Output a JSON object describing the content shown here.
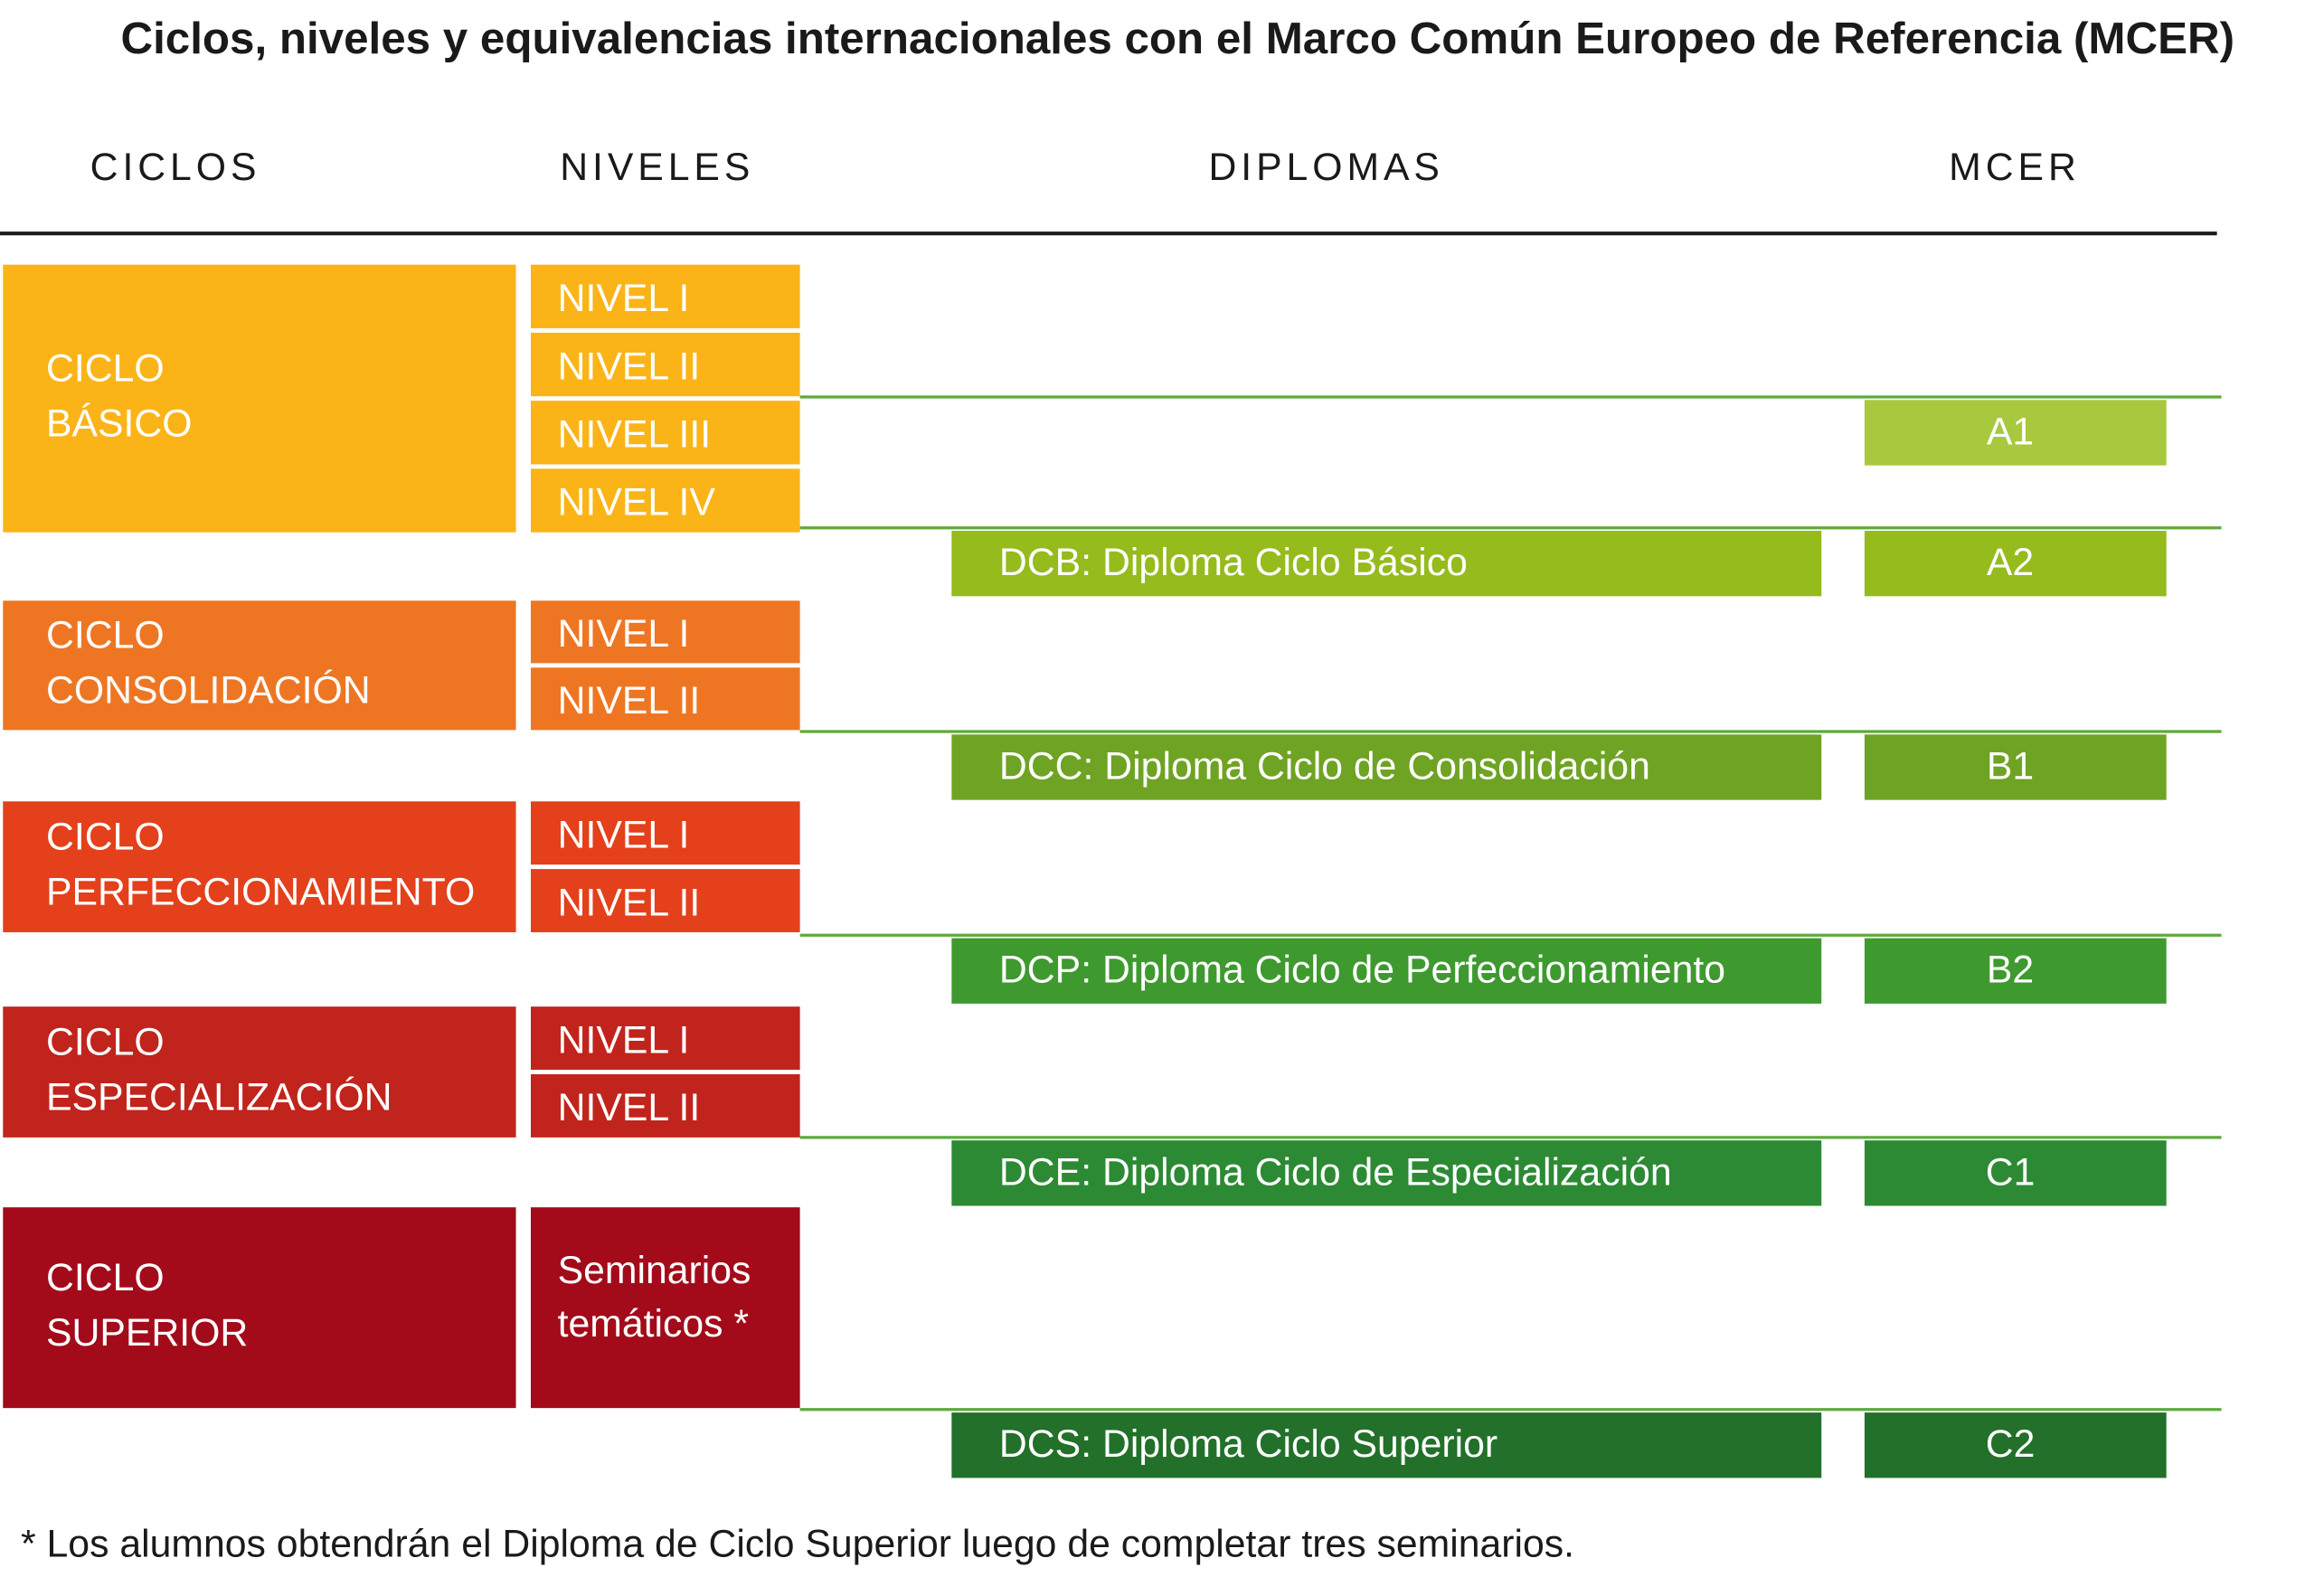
{
  "header": {
    "title": "Ciclos, niveles y equivalencias internacionales con el Marco Común Europeo de Referencia (MCER)"
  },
  "columns": [
    "CICLOS",
    "NIVELES",
    "DIPLOMAS",
    "MCER"
  ],
  "cycles": [
    {
      "name": [
        "CICLO",
        "BÁSICO"
      ],
      "color": "#fbb417",
      "levels": [
        "NIVEL I",
        "NIVEL II",
        "NIVEL III",
        "NIVEL IV"
      ]
    },
    {
      "name": [
        "CICLO",
        "CONSOLIDACIÓN"
      ],
      "color": "#ee7623",
      "levels": [
        "NIVEL I",
        "NIVEL II"
      ]
    },
    {
      "name": [
        "CICLO",
        "PERFECCIONAMIENTO"
      ],
      "color": "#e3401b",
      "levels": [
        "NIVEL I",
        "NIVEL II"
      ]
    },
    {
      "name": [
        "CICLO",
        "ESPECIALIZACIÓN"
      ],
      "color": "#c1241c",
      "levels": [
        "NIVEL I",
        "NIVEL II"
      ]
    },
    {
      "name": [
        "CICLO",
        "SUPERIOR"
      ],
      "color": "#a30b1a",
      "seminar": [
        "Seminarios",
        "temáticos *"
      ]
    }
  ],
  "extra_mcer": {
    "label": "A1",
    "color": "#a8c83e"
  },
  "diplomas": [
    {
      "label": "DCB: Diploma Ciclo Básico",
      "mcer": "A2",
      "color": "#95bb1c"
    },
    {
      "label": "DCC: Diploma Ciclo de Consolidación",
      "mcer": "B1",
      "color": "#6fa323"
    },
    {
      "label": "DCP: Diploma Ciclo de Perfeccionamiento",
      "mcer": "B2",
      "color": "#3e9a2f"
    },
    {
      "label": "DCE: Diploma Ciclo de Especialización",
      "mcer": "C1",
      "color": "#2c8a34"
    },
    {
      "label": "DCS: Diploma Ciclo Superior",
      "mcer": "C2",
      "color": "#22702a"
    }
  ],
  "footnote": "*  Los alumnos obtendrán el Diploma de Ciclo Superior luego de completar tres seminarios."
}
